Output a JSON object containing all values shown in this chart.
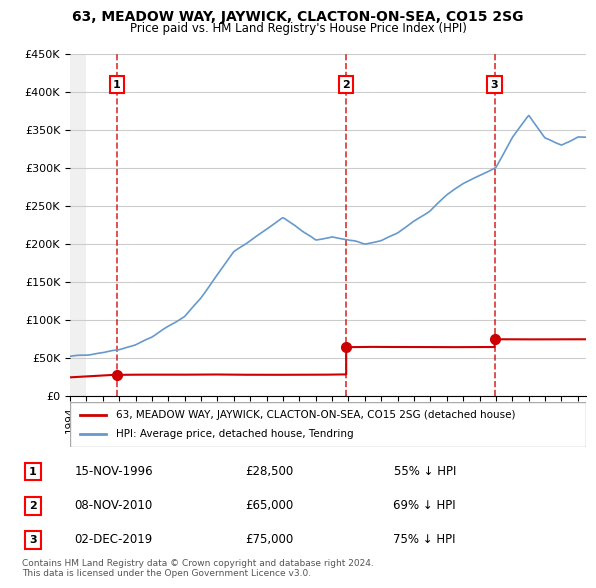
{
  "title": "63, MEADOW WAY, JAYWICK, CLACTON-ON-SEA, CO15 2SG",
  "subtitle": "Price paid vs. HM Land Registry's House Price Index (HPI)",
  "ylabel": "",
  "xlabel": "",
  "ylim": [
    0,
    450000
  ],
  "yticks": [
    0,
    50000,
    100000,
    150000,
    200000,
    250000,
    300000,
    350000,
    400000,
    450000
  ],
  "ytick_labels": [
    "£0",
    "£50K",
    "£100K",
    "£150K",
    "£200K",
    "£250K",
    "£300K",
    "£350K",
    "£400K",
    "£450K"
  ],
  "xlim_start": 1994.0,
  "xlim_end": 2025.5,
  "sale_dates": [
    1996.87,
    2010.86,
    2019.92
  ],
  "sale_prices": [
    28500,
    65000,
    75000
  ],
  "sale_labels": [
    "1",
    "2",
    "3"
  ],
  "sale_table": [
    {
      "num": "1",
      "date": "15-NOV-1996",
      "price": "£28,500",
      "pct": "55% ↓ HPI"
    },
    {
      "num": "2",
      "date": "08-NOV-2010",
      "price": "£65,000",
      "pct": "69% ↓ HPI"
    },
    {
      "num": "3",
      "date": "02-DEC-2019",
      "price": "£75,000",
      "pct": "75% ↓ HPI"
    }
  ],
  "legend_red": "63, MEADOW WAY, JAYWICK, CLACTON-ON-SEA, CO15 2SG (detached house)",
  "legend_blue": "HPI: Average price, detached house, Tendring",
  "footer": "Contains HM Land Registry data © Crown copyright and database right 2024.\nThis data is licensed under the Open Government Licence v3.0.",
  "red_color": "#cc0000",
  "blue_color": "#6699cc",
  "hatch_color": "#cccccc",
  "bg_color": "#ffffff"
}
